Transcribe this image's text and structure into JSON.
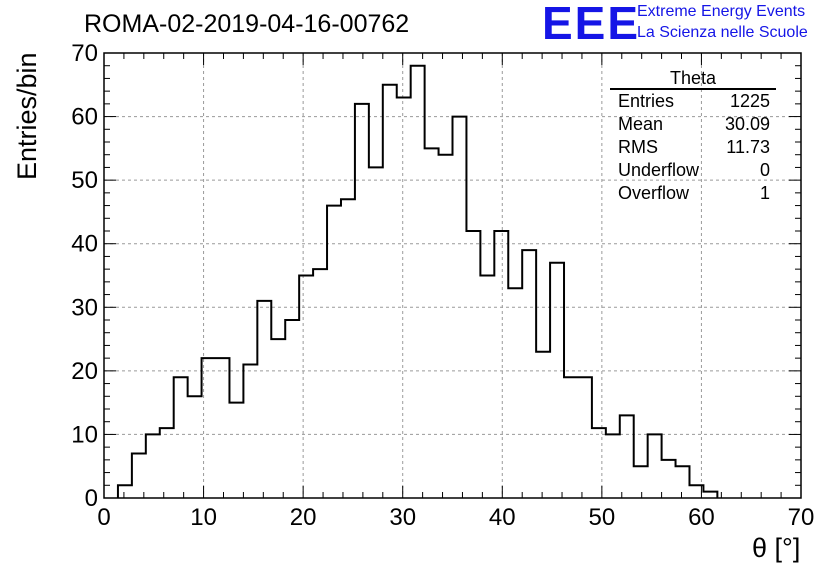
{
  "header": {
    "run_title": "ROMA-02-2019-04-16-00762",
    "logo_text": "EEE",
    "logo_line1": "Extreme Energy Events",
    "logo_line2": "La Scienza nelle Scuole",
    "logo_color": "#1515e6"
  },
  "stats": {
    "title": "Theta",
    "rows": [
      {
        "label": "Entries",
        "value": "1225"
      },
      {
        "label": "Mean",
        "value": "30.09"
      },
      {
        "label": "RMS",
        "value": "11.73"
      },
      {
        "label": "Underflow",
        "value": "0"
      },
      {
        "label": "Overflow",
        "value": "1"
      }
    ]
  },
  "chart_data": {
    "type": "bar",
    "style": "step-histogram",
    "xlabel": "θ [°]",
    "ylabel": "Entries/bin",
    "xlim": [
      0,
      70
    ],
    "ylim": [
      0,
      70
    ],
    "xticks": [
      0,
      10,
      20,
      30,
      40,
      50,
      60,
      70
    ],
    "yticks": [
      0,
      10,
      20,
      30,
      40,
      50,
      60,
      70
    ],
    "grid": true,
    "legend_position": "top-right",
    "bin_width": 1.4,
    "bin_start": 1.4,
    "values": [
      2,
      7,
      10,
      11,
      19,
      16,
      22,
      22,
      15,
      21,
      31,
      25,
      28,
      35,
      36,
      46,
      47,
      62,
      52,
      65,
      63,
      68,
      55,
      54,
      60,
      42,
      35,
      42,
      33,
      39,
      23,
      37,
      19,
      19,
      11,
      10,
      13,
      5,
      10,
      6,
      5,
      2,
      1
    ]
  }
}
